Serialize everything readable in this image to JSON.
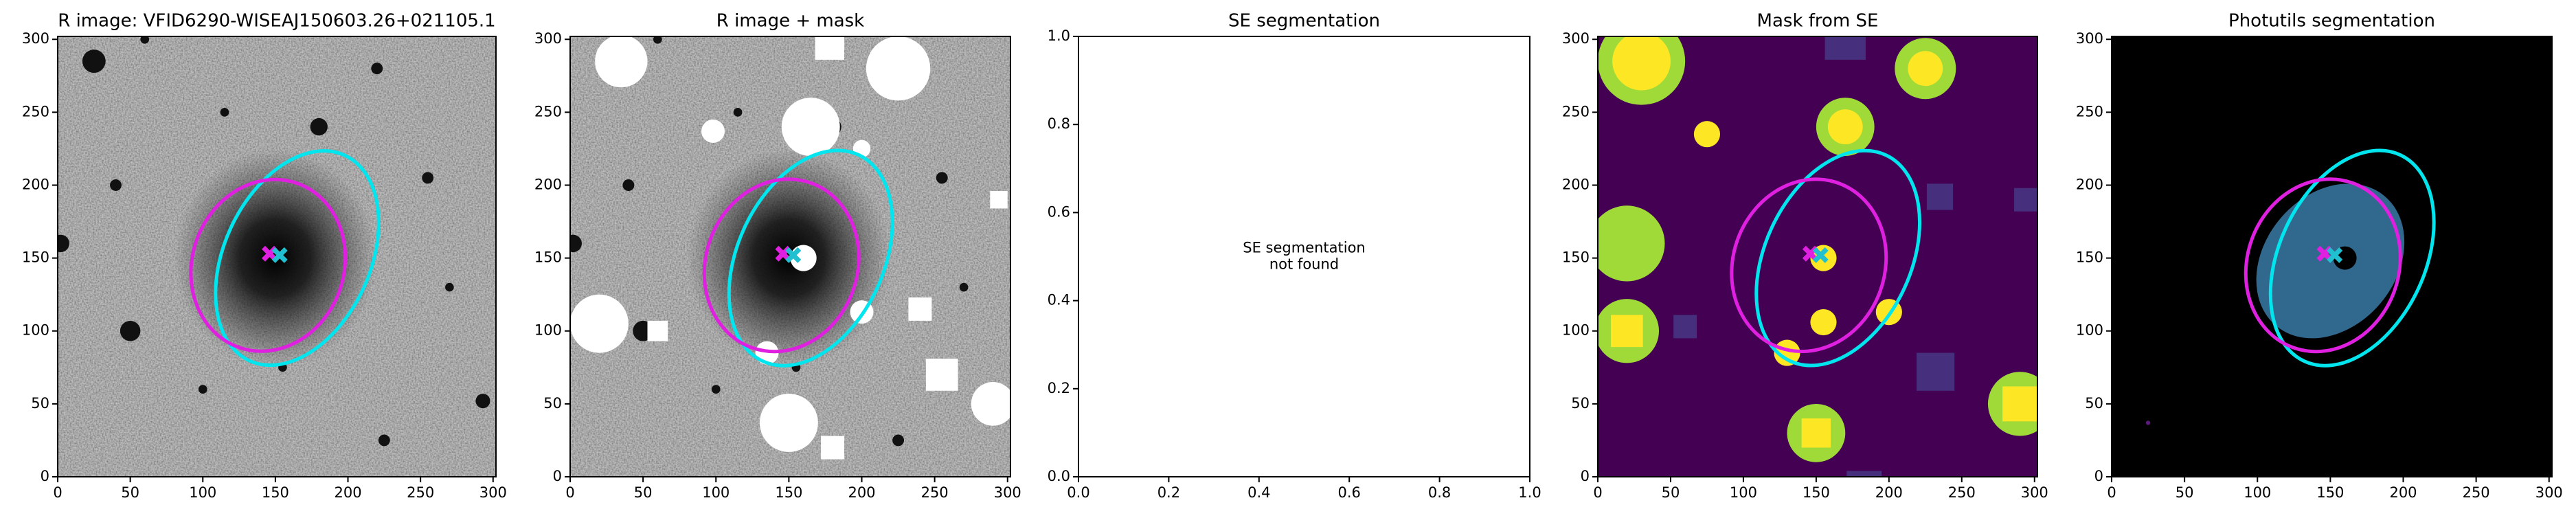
{
  "chart_data": [
    {
      "type": "image",
      "background": "noise",
      "title": "R image: VFID6290-WISEAJ150603.26+021105.1",
      "xlim": [
        0,
        302
      ],
      "ylim": [
        0,
        302
      ],
      "xticks": [
        0,
        50,
        100,
        150,
        200,
        250,
        300
      ],
      "yticks": [
        0,
        50,
        100,
        150,
        200,
        250,
        300
      ],
      "ellipses": [
        {
          "color": "#00e5ee",
          "x": 165,
          "y": 150,
          "width": 156,
          "height": 100,
          "angle": 65
        },
        {
          "color": "#e020e0",
          "x": 145,
          "y": 145,
          "width": 120,
          "height": 104,
          "angle": 70
        }
      ],
      "markers": [
        {
          "color": "#e020e0",
          "x": 146,
          "y": 153
        },
        {
          "color": "#20c0d0",
          "x": 153,
          "y": 152
        }
      ]
    },
    {
      "type": "image",
      "background": "masked",
      "title": "R image + mask",
      "xlim": [
        0,
        302
      ],
      "ylim": [
        0,
        302
      ],
      "xticks": [
        0,
        50,
        100,
        150,
        200,
        250,
        300
      ],
      "yticks": [
        0,
        50,
        100,
        150,
        200,
        250,
        300
      ],
      "ellipses": [
        {
          "color": "#00e5ee",
          "x": 165,
          "y": 150,
          "width": 156,
          "height": 100,
          "angle": 65
        },
        {
          "color": "#e020e0",
          "x": 145,
          "y": 145,
          "width": 120,
          "height": 104,
          "angle": 70
        }
      ],
      "markers": [
        {
          "color": "#e020e0",
          "x": 146,
          "y": 153
        },
        {
          "color": "#20c0d0",
          "x": 153,
          "y": 152
        }
      ]
    },
    {
      "type": "empty",
      "title": "SE segmentation",
      "annotation": [
        "SE segmentation",
        "not found"
      ],
      "xlim": [
        0,
        1
      ],
      "ylim": [
        0,
        1
      ],
      "xticks": [
        {
          "value": 0,
          "label": "0.0"
        },
        {
          "value": 0.2,
          "label": "0.2"
        },
        {
          "value": 0.4,
          "label": "0.4"
        },
        {
          "value": 0.6,
          "label": "0.6"
        },
        {
          "value": 0.8,
          "label": "0.8"
        },
        {
          "value": 1,
          "label": "1.0"
        }
      ],
      "yticks": [
        {
          "value": 0,
          "label": "0.0"
        },
        {
          "value": 0.2,
          "label": "0.2"
        },
        {
          "value": 0.4,
          "label": "0.4"
        },
        {
          "value": 0.6,
          "label": "0.6"
        },
        {
          "value": 0.8,
          "label": "0.8"
        },
        {
          "value": 1,
          "label": "1.0"
        }
      ]
    },
    {
      "type": "image",
      "background": "segmap",
      "title": "Mask from SE",
      "xlim": [
        0,
        302
      ],
      "ylim": [
        0,
        302
      ],
      "xticks": [
        0,
        50,
        100,
        150,
        200,
        250,
        300
      ],
      "yticks": [
        0,
        50,
        100,
        150,
        200,
        250,
        300
      ],
      "ellipses": [
        {
          "color": "#00e5ee",
          "x": 165,
          "y": 150,
          "width": 156,
          "height": 100,
          "angle": 65
        },
        {
          "color": "#e020e0",
          "x": 145,
          "y": 145,
          "width": 120,
          "height": 104,
          "angle": 70
        }
      ],
      "markers": [
        {
          "color": "#e020e0",
          "x": 146,
          "y": 153
        },
        {
          "color": "#20c0d0",
          "x": 153,
          "y": 152
        }
      ]
    },
    {
      "type": "image",
      "background": "photutils",
      "title": "Photutils segmentation",
      "xlim": [
        0,
        302
      ],
      "ylim": [
        0,
        302
      ],
      "xticks": [
        0,
        50,
        100,
        150,
        200,
        250,
        300
      ],
      "yticks": [
        0,
        50,
        100,
        150,
        200,
        250,
        300
      ],
      "ellipses": [
        {
          "color": "#00e5ee",
          "x": 165,
          "y": 150,
          "width": 156,
          "height": 100,
          "angle": 65
        },
        {
          "color": "#e020e0",
          "x": 145,
          "y": 145,
          "width": 120,
          "height": 104,
          "angle": 70
        }
      ],
      "markers": [
        {
          "color": "#e020e0",
          "x": 146,
          "y": 153
        },
        {
          "color": "#20c0d0",
          "x": 153,
          "y": 152
        }
      ]
    }
  ]
}
